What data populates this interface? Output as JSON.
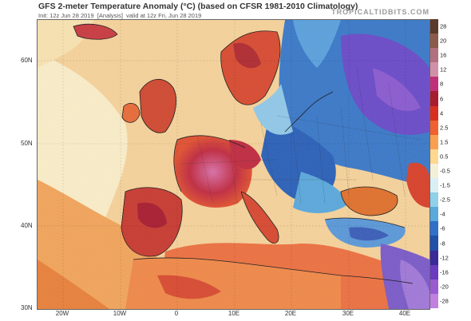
{
  "header": {
    "title": "GFS 2-meter Temperature Anomaly (°C) (based on CFSR 1981-2010 Climatology)",
    "init": "Init: 12z Jun 28 2019",
    "analysis": "[Analysis]",
    "valid": "valid at 12z Fri, Jun 28 2019",
    "brand": "TROPICALTIDBITS.COM"
  },
  "map": {
    "latitude_labels": [
      "60N",
      "50N",
      "40N",
      "30N"
    ],
    "longitude_labels": [
      "20W",
      "10W",
      "0",
      "10E",
      "20E",
      "30E",
      "40E"
    ]
  },
  "colorbar": {
    "labels": [
      "28",
      "20",
      "16",
      "12",
      "8",
      "6",
      "4",
      "2.5",
      "1.5",
      "0.5",
      "-0.5",
      "-1.5",
      "-2.5",
      "-4",
      "-6",
      "-8",
      "-12",
      "-16",
      "-20",
      "-28"
    ],
    "colors": [
      "#5a3a2a",
      "#8a5a4a",
      "#b07080",
      "#d090a8",
      "#c0307a",
      "#a81c30",
      "#d83020",
      "#f06030",
      "#f8a050",
      "#fcd890",
      "#f4f0d8",
      "#d8f0f4",
      "#90d0e8",
      "#5aa8dc",
      "#3070c8",
      "#2050a8",
      "#3a2a98",
      "#6a3ac0",
      "#9a5ad0",
      "#c080e0"
    ]
  }
}
